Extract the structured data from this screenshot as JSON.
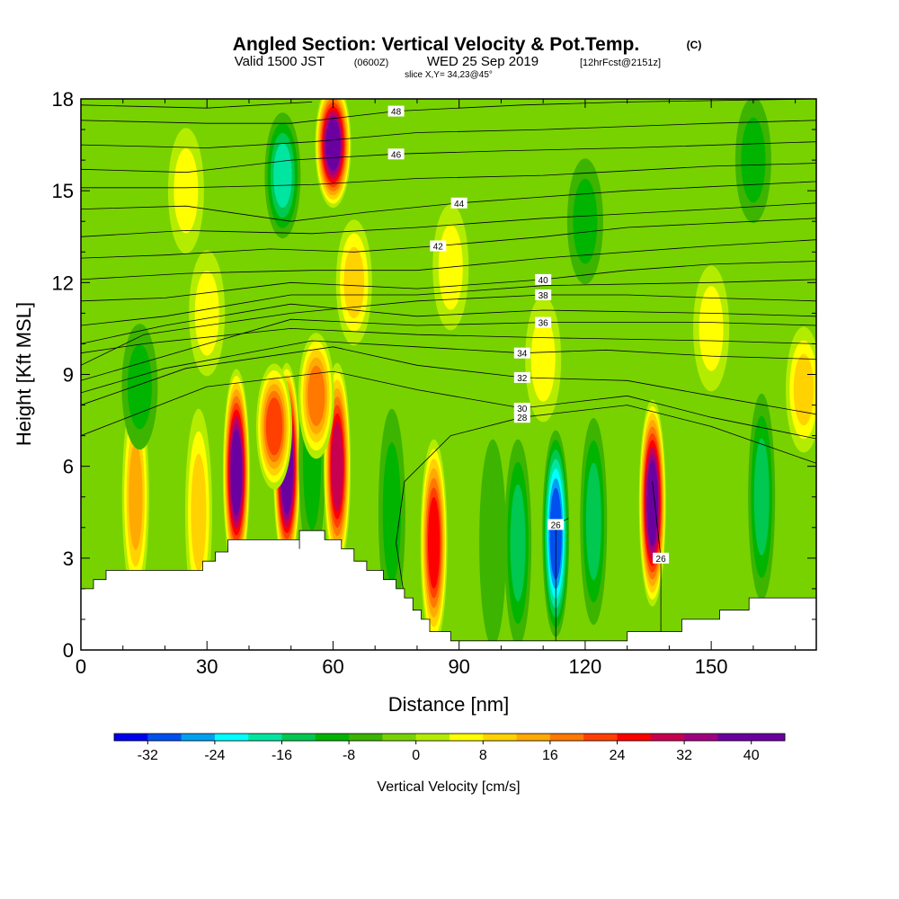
{
  "title": {
    "main": "Angled Section: Vertical Velocity & Pot.Temp.",
    "copyright": "(C)",
    "valid_prefix": "Valid 1500 JST",
    "valid_utc": "(0600Z)",
    "valid_date": "WED 25 Sep 2019",
    "forecast": "[12hrFcst@2151z]",
    "slice": "slice X,Y= 34,23@45°"
  },
  "chart_data": {
    "type": "heatmap",
    "xlabel": "Distance [nm]",
    "ylabel": "Height [Kft MSL]",
    "xlim": [
      0,
      175
    ],
    "ylim": [
      0,
      18
    ],
    "x_ticks": [
      "0",
      "30",
      "60",
      "90",
      "120",
      "150"
    ],
    "x_tick_values": [
      0,
      30,
      60,
      90,
      120,
      150
    ],
    "y_ticks": [
      "0",
      "3",
      "6",
      "9",
      "12",
      "15",
      "18"
    ],
    "y_tick_values": [
      0,
      3,
      6,
      9,
      12,
      15,
      18
    ],
    "background_value": -3,
    "terrain": [
      [
        0,
        2
      ],
      [
        3,
        2
      ],
      [
        3,
        2.3
      ],
      [
        6,
        2.3
      ],
      [
        6,
        2.6
      ],
      [
        29,
        2.6
      ],
      [
        29,
        2.9
      ],
      [
        32,
        2.9
      ],
      [
        32,
        3.2
      ],
      [
        35,
        3.2
      ],
      [
        35,
        3.6
      ],
      [
        52,
        3.6
      ],
      [
        52,
        3.3
      ],
      [
        52,
        3.9
      ],
      [
        58,
        3.9
      ],
      [
        58,
        3.6
      ],
      [
        62,
        3.6
      ],
      [
        62,
        3.3
      ],
      [
        65,
        3.3
      ],
      [
        65,
        2.9
      ],
      [
        68,
        2.9
      ],
      [
        68,
        2.6
      ],
      [
        72,
        2.6
      ],
      [
        72,
        2.3
      ],
      [
        75,
        2.3
      ],
      [
        75,
        2
      ],
      [
        77,
        2
      ],
      [
        77,
        1.7
      ],
      [
        79,
        1.7
      ],
      [
        79,
        1.3
      ],
      [
        81,
        1.3
      ],
      [
        81,
        1
      ],
      [
        83,
        1
      ],
      [
        83,
        0.6
      ],
      [
        88,
        0.6
      ],
      [
        88,
        0.3
      ],
      [
        130,
        0.3
      ],
      [
        130,
        0.6
      ],
      [
        143,
        0.6
      ],
      [
        143,
        1
      ],
      [
        152,
        1
      ],
      [
        152,
        1.3
      ],
      [
        159,
        1.3
      ],
      [
        159,
        1.7
      ],
      [
        175,
        1.7
      ]
    ],
    "velocity_features": [
      {
        "x": 13,
        "z": 5.0,
        "value": 12
      },
      {
        "x": 28,
        "z": 4.5,
        "value": 8
      },
      {
        "x": 37,
        "z": 5.8,
        "value": 36
      },
      {
        "x": 49,
        "z": 6.0,
        "value": 42
      },
      {
        "x": 55,
        "z": 6.2,
        "value": -10
      },
      {
        "x": 61,
        "z": 6.0,
        "value": 28
      },
      {
        "x": 74,
        "z": 4.5,
        "value": -10
      },
      {
        "x": 84,
        "z": 3.5,
        "value": 26
      },
      {
        "x": 98,
        "z": 3.5,
        "value": -8
      },
      {
        "x": 104,
        "z": 3.5,
        "value": -16
      },
      {
        "x": 113,
        "z": 3.8,
        "value": -32
      },
      {
        "x": 122,
        "z": 4.2,
        "value": -16
      },
      {
        "x": 136,
        "z": 4.8,
        "value": 38
      },
      {
        "x": 162,
        "z": 5.0,
        "value": -16
      },
      {
        "x": 14,
        "z": 8.6,
        "value": -12
      },
      {
        "x": 46,
        "z": 7.3,
        "value": 22
      },
      {
        "x": 56,
        "z": 8.3,
        "value": 18
      },
      {
        "x": 48,
        "z": 15.5,
        "value": -18
      },
      {
        "x": 60,
        "z": 16.5,
        "value": 36
      },
      {
        "x": 65,
        "z": 12.0,
        "value": 8
      },
      {
        "x": 30,
        "z": 11.0,
        "value": 6
      },
      {
        "x": 88,
        "z": 12.5,
        "value": 6
      },
      {
        "x": 120,
        "z": 14.0,
        "value": -9
      },
      {
        "x": 110,
        "z": 9.5,
        "value": 6
      },
      {
        "x": 25,
        "z": 15.0,
        "value": 6
      },
      {
        "x": 150,
        "z": 10.5,
        "value": 6
      },
      {
        "x": 160,
        "z": 16.0,
        "value": -9
      },
      {
        "x": 172,
        "z": 8.5,
        "value": 10
      }
    ],
    "isentropes": [
      {
        "label": "26",
        "points": [
          [
            113,
            0.3
          ],
          [
            113,
            4.1
          ],
          [
            116,
            4.3
          ]
        ]
      },
      {
        "label": "26",
        "points": [
          [
            138,
            0.6
          ],
          [
            138,
            3.0
          ],
          [
            136,
            5.5
          ]
        ]
      },
      {
        "label": "28",
        "points": [
          [
            77,
            1.7
          ],
          [
            75,
            3.5
          ],
          [
            77,
            5.5
          ],
          [
            88,
            7.0
          ],
          [
            105,
            7.6
          ],
          [
            130,
            8.0
          ],
          [
            150,
            7.3
          ],
          [
            175,
            6.1
          ]
        ]
      },
      {
        "label": "30",
        "points": [
          [
            0,
            7.0
          ],
          [
            30,
            8.6
          ],
          [
            60,
            9.1
          ],
          [
            80,
            8.5
          ],
          [
            105,
            7.9
          ],
          [
            130,
            8.3
          ],
          [
            150,
            7.6
          ],
          [
            175,
            6.9
          ]
        ]
      },
      {
        "label": "32",
        "points": [
          [
            0,
            8.0
          ],
          [
            25,
            9.2
          ],
          [
            60,
            9.9
          ],
          [
            80,
            9.3
          ],
          [
            105,
            8.9
          ],
          [
            130,
            8.8
          ],
          [
            150,
            8.3
          ],
          [
            175,
            7.7
          ]
        ]
      },
      {
        "label": "34",
        "points": [
          [
            0,
            8.4
          ],
          [
            20,
            9.2
          ],
          [
            55,
            10.1
          ],
          [
            80,
            9.9
          ],
          [
            105,
            9.7
          ],
          [
            125,
            9.8
          ],
          [
            150,
            9.6
          ],
          [
            175,
            9.5
          ]
        ]
      },
      {
        "label": "36",
        "points": [
          [
            0,
            8.8
          ],
          [
            15,
            9.4
          ],
          [
            50,
            10.8
          ],
          [
            80,
            10.6
          ],
          [
            110,
            10.7
          ],
          [
            130,
            10.7
          ],
          [
            150,
            10.7
          ],
          [
            175,
            10.6
          ]
        ]
      },
      {
        "label": "38",
        "points": [
          [
            0,
            9.3
          ],
          [
            15,
            10.3
          ],
          [
            50,
            11.0
          ],
          [
            80,
            11.4
          ],
          [
            110,
            11.6
          ],
          [
            130,
            11.6
          ],
          [
            150,
            11.5
          ],
          [
            175,
            11.4
          ]
        ]
      },
      {
        "label": "40",
        "points": [
          [
            0,
            11.4
          ],
          [
            20,
            11.5
          ],
          [
            50,
            12.0
          ],
          [
            80,
            11.8
          ],
          [
            110,
            12.1
          ],
          [
            130,
            12.4
          ],
          [
            150,
            12.6
          ],
          [
            175,
            12.7
          ]
        ]
      },
      {
        "label": "42",
        "points": [
          [
            0,
            12.8
          ],
          [
            20,
            12.9
          ],
          [
            45,
            13.1
          ],
          [
            65,
            13.0
          ],
          [
            85,
            13.2
          ],
          [
            110,
            13.5
          ],
          [
            130,
            13.8
          ],
          [
            175,
            14.1
          ]
        ]
      },
      {
        "label": "44",
        "points": [
          [
            0,
            14.4
          ],
          [
            25,
            14.5
          ],
          [
            50,
            14.0
          ],
          [
            68,
            14.3
          ],
          [
            90,
            14.6
          ],
          [
            110,
            14.8
          ],
          [
            130,
            15.0
          ],
          [
            175,
            15.3
          ]
        ]
      },
      {
        "label": "46",
        "points": [
          [
            0,
            15.7
          ],
          [
            25,
            15.6
          ],
          [
            50,
            16.0
          ],
          [
            75,
            16.2
          ],
          [
            100,
            16.3
          ],
          [
            130,
            16.4
          ],
          [
            175,
            16.6
          ]
        ]
      },
      {
        "label": "48",
        "points": [
          [
            0,
            17.3
          ],
          [
            30,
            17.2
          ],
          [
            50,
            17.2
          ],
          [
            75,
            17.6
          ],
          [
            105,
            17.8
          ],
          [
            130,
            17.9
          ],
          [
            175,
            18.0
          ]
        ]
      }
    ],
    "extra_isentropes": [
      [
        [
          0,
          10.0
        ],
        [
          20,
          10.6
        ],
        [
          50,
          11.3
        ],
        [
          80,
          10.9
        ],
        [
          110,
          11.1
        ],
        [
          150,
          11.0
        ],
        [
          175,
          10.9
        ]
      ],
      [
        [
          0,
          10.6
        ],
        [
          20,
          10.9
        ],
        [
          50,
          11.6
        ],
        [
          80,
          11.6
        ],
        [
          110,
          11.9
        ],
        [
          150,
          12.0
        ],
        [
          175,
          12.1
        ]
      ],
      [
        [
          0,
          12.1
        ],
        [
          25,
          12.3
        ],
        [
          55,
          12.4
        ],
        [
          80,
          12.4
        ],
        [
          110,
          12.8
        ],
        [
          150,
          13.2
        ],
        [
          175,
          13.4
        ]
      ],
      [
        [
          0,
          13.5
        ],
        [
          25,
          13.7
        ],
        [
          55,
          13.6
        ],
        [
          80,
          13.8
        ],
        [
          110,
          14.1
        ],
        [
          150,
          14.4
        ],
        [
          175,
          14.6
        ]
      ],
      [
        [
          0,
          15.1
        ],
        [
          25,
          15.1
        ],
        [
          55,
          15.2
        ],
        [
          80,
          15.4
        ],
        [
          110,
          15.5
        ],
        [
          150,
          15.8
        ],
        [
          175,
          15.9
        ]
      ],
      [
        [
          0,
          16.5
        ],
        [
          30,
          16.4
        ],
        [
          55,
          16.6
        ],
        [
          80,
          16.9
        ],
        [
          110,
          17.0
        ],
        [
          150,
          17.2
        ],
        [
          175,
          17.3
        ]
      ],
      [
        [
          0,
          9.7
        ],
        [
          15,
          10.0
        ],
        [
          50,
          10.5
        ],
        [
          80,
          10.3
        ],
        [
          110,
          10.2
        ],
        [
          150,
          10.1
        ],
        [
          175,
          10.0
        ]
      ],
      [
        [
          0,
          17.8
        ],
        [
          30,
          17.7
        ],
        [
          55,
          17.9
        ]
      ]
    ],
    "colorbar": {
      "label": "Vertical Velocity [cm/s]",
      "tick_labels": [
        "-32",
        "-24",
        "-16",
        "-8",
        "0",
        "8",
        "16",
        "24",
        "32",
        "40"
      ],
      "tick_values": [
        -32,
        -24,
        -16,
        -8,
        0,
        8,
        16,
        24,
        32,
        40
      ],
      "levels": [
        -36,
        -32,
        -28,
        -24,
        -20,
        -16,
        -12,
        -8,
        -4,
        0,
        4,
        8,
        12,
        16,
        20,
        24,
        28,
        32,
        36,
        40,
        44
      ],
      "colors": [
        "#0000f0",
        "#0050f0",
        "#00a0f0",
        "#00ffff",
        "#00e6a0",
        "#00c850",
        "#00b400",
        "#3cb400",
        "#78d200",
        "#b4ec00",
        "#ffff00",
        "#ffd200",
        "#ffaa00",
        "#ff7800",
        "#ff4000",
        "#ff0000",
        "#c80050",
        "#a00080",
        "#6a00a0",
        "#6a00a0"
      ]
    }
  }
}
